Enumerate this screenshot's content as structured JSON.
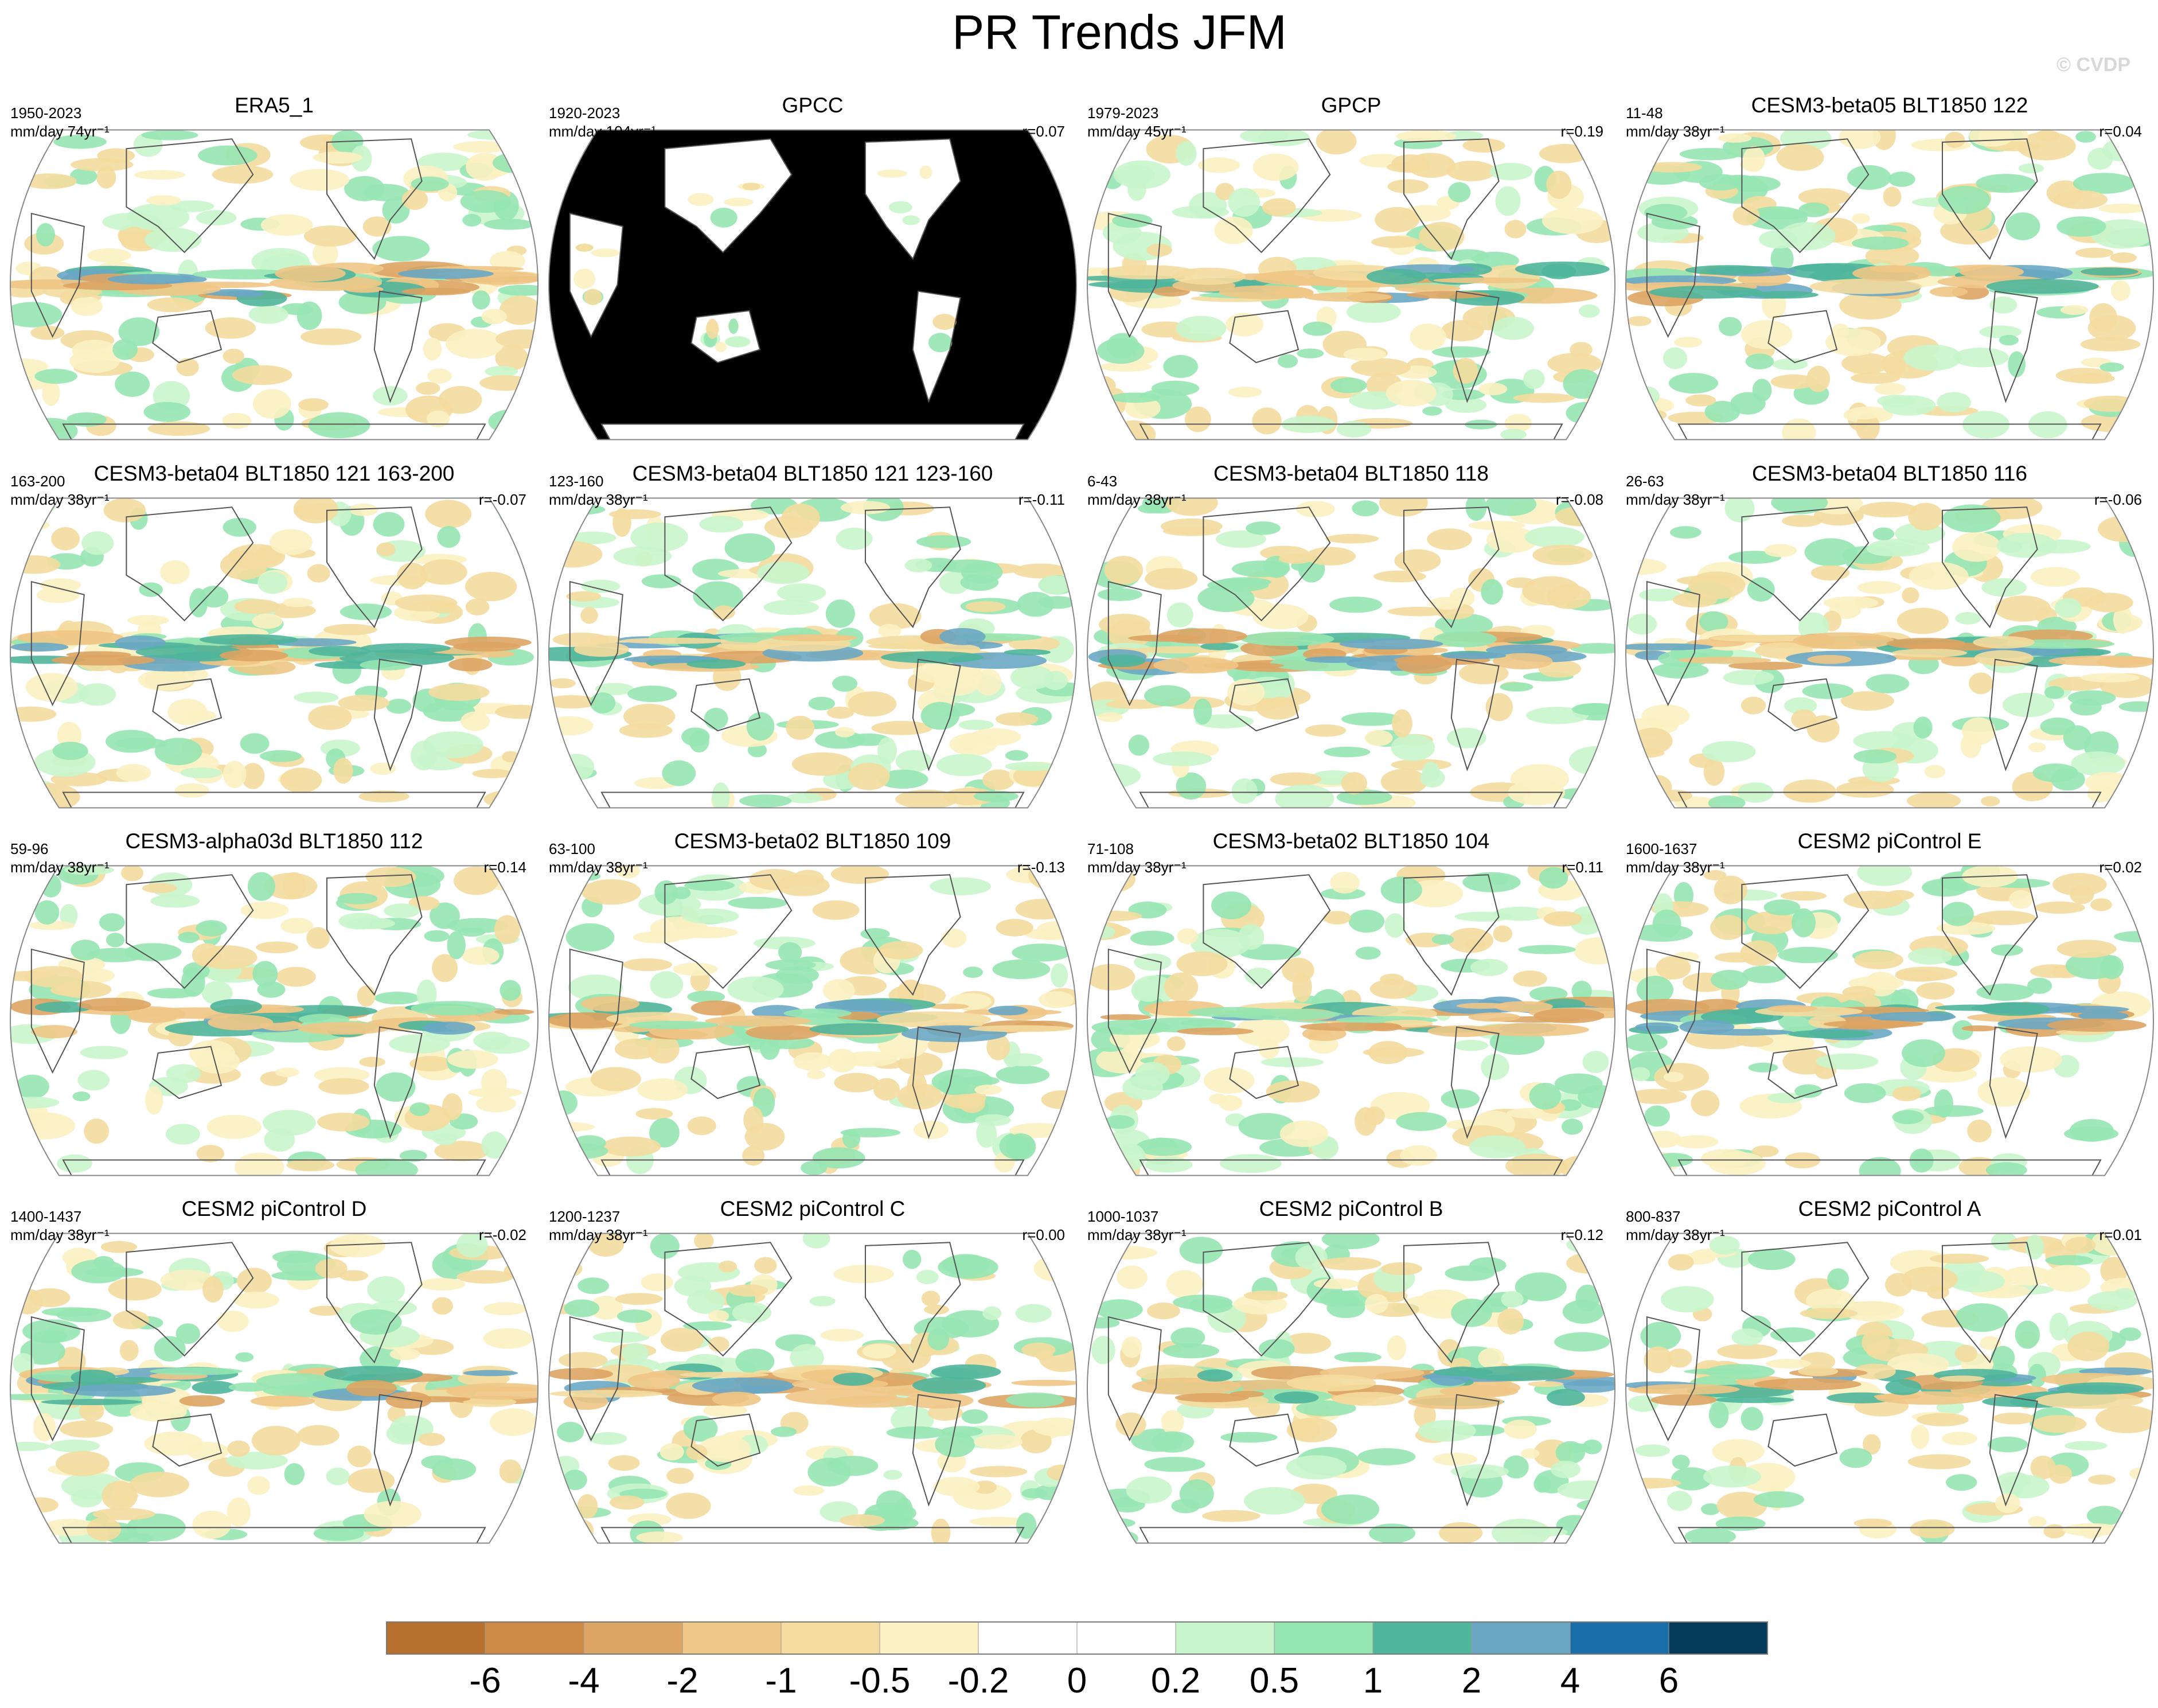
{
  "title": "PR Trends JFM",
  "copyright": "© CVDP",
  "colors": {
    "ocean_mask": "#e2e2e2",
    "coast": "#555555",
    "frame": "#888888"
  },
  "chart_data": {
    "type": "heatmap",
    "projection": "robinson-like, Pacific-centered",
    "units": "mm/day",
    "panels": [
      {
        "title": "ERA5_1",
        "period": "1950-2023",
        "units_label": "mm/day 74yr⁻¹",
        "r": "",
        "masked_ocean": false
      },
      {
        "title": "GPCC",
        "period": "1920-2023",
        "units_label": "mm/day 104yr⁻¹",
        "r": "r=0.07",
        "masked_ocean": true
      },
      {
        "title": "GPCP",
        "period": "1979-2023",
        "units_label": "mm/day 45yr⁻¹",
        "r": "r=0.19",
        "masked_ocean": false
      },
      {
        "title": "CESM3-beta05 BLT1850 122",
        "period": "11-48",
        "units_label": "mm/day 38yr⁻¹",
        "r": "r=0.04",
        "masked_ocean": false
      },
      {
        "title": "CESM3-beta04 BLT1850 121 163-200",
        "period": "163-200",
        "units_label": "mm/day 38yr⁻¹",
        "r": "r=-0.07",
        "masked_ocean": false
      },
      {
        "title": "CESM3-beta04 BLT1850 121 123-160",
        "period": "123-160",
        "units_label": "mm/day 38yr⁻¹",
        "r": "r=-0.11",
        "masked_ocean": false
      },
      {
        "title": "CESM3-beta04 BLT1850 118",
        "period": "6-43",
        "units_label": "mm/day 38yr⁻¹",
        "r": "r=-0.08",
        "masked_ocean": false
      },
      {
        "title": "CESM3-beta04 BLT1850 116",
        "period": "26-63",
        "units_label": "mm/day 38yr⁻¹",
        "r": "r=-0.06",
        "masked_ocean": false
      },
      {
        "title": "CESM3-alpha03d BLT1850 112",
        "period": "59-96",
        "units_label": "mm/day 38yr⁻¹",
        "r": "r=0.14",
        "masked_ocean": false
      },
      {
        "title": "CESM3-beta02 BLT1850 109",
        "period": "63-100",
        "units_label": "mm/day 38yr⁻¹",
        "r": "r=-0.13",
        "masked_ocean": false
      },
      {
        "title": "CESM3-beta02 BLT1850 104",
        "period": "71-108",
        "units_label": "mm/day 38yr⁻¹",
        "r": "r=0.11",
        "masked_ocean": false
      },
      {
        "title": "CESM2 piControl E",
        "period": "1600-1637",
        "units_label": "mm/day 38yr⁻¹",
        "r": "r=0.02",
        "masked_ocean": false
      },
      {
        "title": "CESM2 piControl D",
        "period": "1400-1437",
        "units_label": "mm/day 38yr⁻¹",
        "r": "r=-0.02",
        "masked_ocean": false
      },
      {
        "title": "CESM2 piControl C",
        "period": "1200-1237",
        "units_label": "mm/day 38yr⁻¹",
        "r": "r=0.00",
        "masked_ocean": false
      },
      {
        "title": "CESM2 piControl B",
        "period": "1000-1037",
        "units_label": "mm/day 38yr⁻¹",
        "r": "r=0.12",
        "masked_ocean": false
      },
      {
        "title": "CESM2 piControl A",
        "period": "800-837",
        "units_label": "mm/day 38yr⁻¹",
        "r": "r=0.01",
        "masked_ocean": false
      }
    ],
    "colorbar": {
      "levels": [
        -6,
        -4,
        -2,
        -1,
        -0.5,
        -0.2,
        0,
        0.2,
        0.5,
        1,
        2,
        4,
        6
      ],
      "tick_labels": [
        "-6",
        "-4",
        "-2",
        "-1",
        "-0.5",
        "-0.2",
        "0",
        "0.2",
        "0.5",
        "1",
        "2",
        "4",
        "6"
      ],
      "colors": [
        "#b8702e",
        "#cc8a45",
        "#dda463",
        "#efc786",
        "#f4dc9e",
        "#fbf1c2",
        "#ffffff",
        "#ffffff",
        "#c9f5cc",
        "#96e6b2",
        "#4fb59b",
        "#6aa7c4",
        "#1b6fa8",
        "#063a5a"
      ]
    }
  }
}
